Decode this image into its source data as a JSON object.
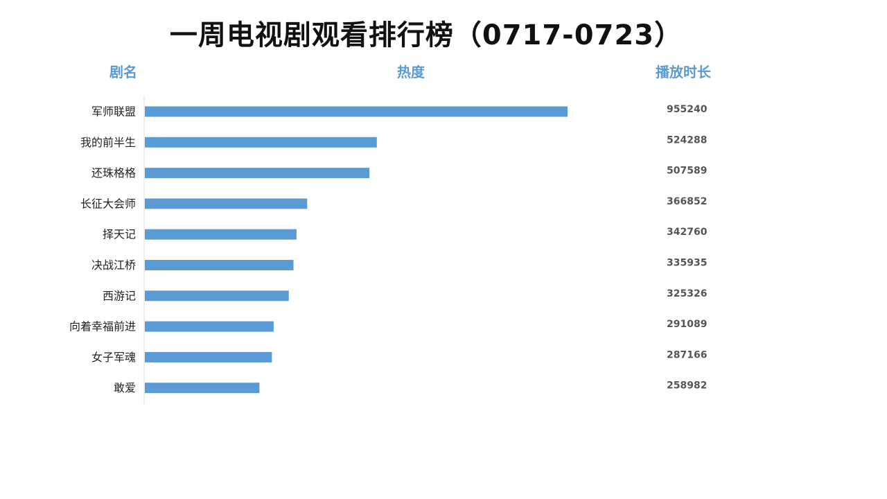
{
  "title": "一周电视剧观看排行榜（0717-0723）",
  "headers": {
    "name": "剧名",
    "heat": "热度",
    "duration": "播放时长"
  },
  "colors": {
    "bar": "#5b9bd5",
    "header": "#5b9bd5",
    "axis": "#d9d9d9"
  },
  "chart_data": {
    "type": "bar",
    "orientation": "horizontal",
    "title": "一周电视剧观看排行榜（0717-0723）",
    "categories": [
      "军师联盟",
      "我的前半生",
      "还珠格格",
      "长征大会师",
      "择天记",
      "决战江桥",
      "西游记",
      "向着幸福前进",
      "女子军魂",
      "敢爱"
    ],
    "values": [
      955240,
      524288,
      507589,
      366852,
      342760,
      335935,
      325326,
      291089,
      287166,
      258982
    ],
    "grid": false,
    "legend": "none"
  }
}
